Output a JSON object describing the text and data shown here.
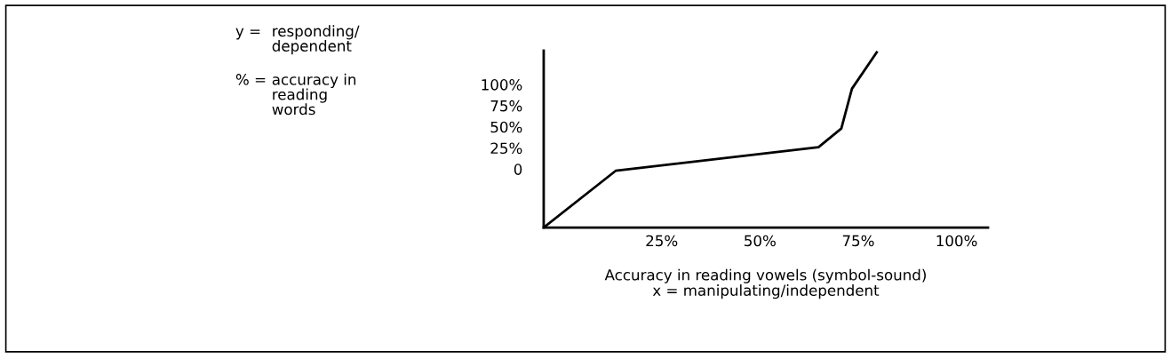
{
  "chart_data": {
    "type": "line",
    "xlabel": "Accuracy in reading vowels (symbol-sound)\nx = manipulating/independent",
    "annotations": [
      "y =",
      "responding/\ndependent",
      "% =",
      "accuracy in\nreading\nwords"
    ],
    "x": [
      -5,
      13.3,
      64.9,
      70.7,
      73.4,
      79.7
    ],
    "series": [
      {
        "color": "#000000",
        "values": [
          -69,
          -2,
          26,
          48,
          95,
          138
        ]
      }
    ],
    "xlim": [
      -5,
      108
    ],
    "xticks": [
      {
        "value": 25,
        "label": "25%"
      },
      {
        "value": 50,
        "label": "50%"
      },
      {
        "value": 75,
        "label": "75%"
      },
      {
        "value": 100,
        "label": "100%"
      }
    ],
    "ylim": [
      -69,
      140
    ],
    "yticks": [
      0,
      {
        "value": 25,
        "label": "25%"
      },
      {
        "value": 50,
        "label": "50%"
      },
      {
        "value": 75,
        "label": "75%"
      },
      {
        "value": 100,
        "label": "100%"
      }
    ],
    "grid": false,
    "legend": false,
    "marker": "none",
    "line_style": "solid"
  }
}
